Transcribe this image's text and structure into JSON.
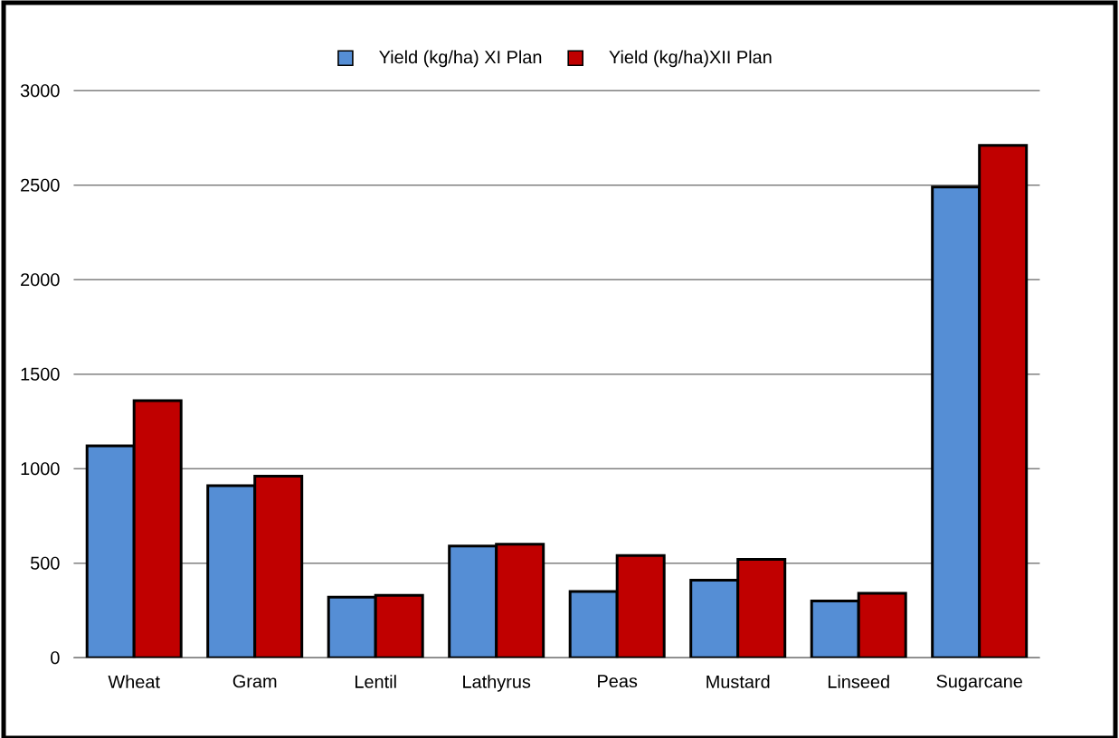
{
  "chart_data": {
    "type": "bar",
    "categories": [
      "Wheat",
      "Gram",
      "Lentil",
      "Lathyrus",
      "Peas",
      "Mustard",
      "Linseed",
      "Sugarcane"
    ],
    "series": [
      {
        "name": "Yield (kg/ha) XI Plan",
        "color": "#558ed5",
        "values": [
          1120,
          910,
          320,
          590,
          350,
          410,
          300,
          2490
        ]
      },
      {
        "name": "Yield (kg/ha)XII Plan",
        "color": "#c00000",
        "values": [
          1360,
          960,
          330,
          600,
          540,
          520,
          340,
          2710
        ]
      }
    ],
    "ylim": [
      0,
      3000
    ],
    "yticks": [
      0,
      500,
      1000,
      1500,
      2000,
      2500,
      3000
    ],
    "grid": "y",
    "legend": "top"
  }
}
